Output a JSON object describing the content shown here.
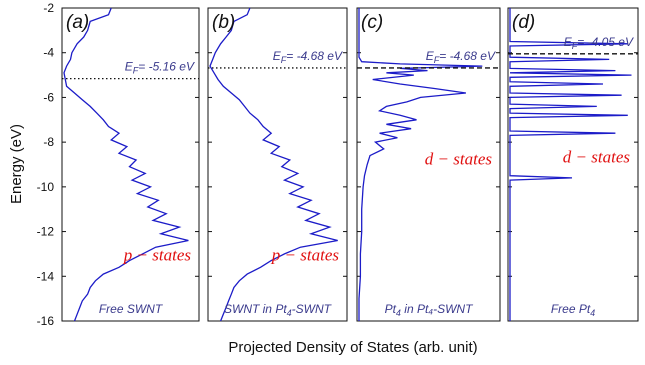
{
  "chart_data": {
    "type": "line",
    "ylabel": "Energy (eV)",
    "xlabel": "Projected Density of States (arb. unit)",
    "ylim": [
      -16,
      -2
    ],
    "yticks": [
      -2,
      -4,
      -6,
      -8,
      -10,
      -12,
      -14,
      -16
    ],
    "line_color": "#1c1cc8",
    "label_color": "#3a3a8c",
    "state_color": "#e01010",
    "panels": [
      {
        "letter": "(a)",
        "fermi_label": "E",
        "fermi_sub": "F",
        "fermi_value": "= -5.16 eV",
        "fermi_energy": -5.16,
        "fermi_style": "dotted",
        "state_label": "p − states",
        "state_energy": -13.3,
        "bottom_label": "Free SWNT",
        "bottom_sub": "",
        "bottom_tail": "",
        "series": {
          "name": "",
          "energy": [
            -2.0,
            -2.3,
            -2.6,
            -3.0,
            -3.3,
            -3.6,
            -4.0,
            -4.3,
            -4.6,
            -4.9,
            -5.2,
            -5.5,
            -5.8,
            -6.1,
            -6.4,
            -6.7,
            -7.0,
            -7.3,
            -7.6,
            -7.9,
            -8.2,
            -8.5,
            -8.8,
            -9.1,
            -9.4,
            -9.7,
            -10.0,
            -10.3,
            -10.6,
            -10.9,
            -11.2,
            -11.5,
            -11.8,
            -12.1,
            -12.4,
            -12.7,
            -13.0,
            -13.3,
            -13.6,
            -13.9,
            -14.2,
            -14.5,
            -14.8,
            -15.1,
            -15.4,
            -15.7,
            -16.0
          ],
          "dos": [
            0.36,
            0.34,
            0.2,
            0.18,
            0.15,
            0.1,
            0.06,
            0.05,
            0.02,
            0.0,
            0.01,
            0.02,
            0.08,
            0.14,
            0.2,
            0.25,
            0.3,
            0.34,
            0.42,
            0.36,
            0.48,
            0.42,
            0.55,
            0.5,
            0.62,
            0.52,
            0.66,
            0.56,
            0.72,
            0.64,
            0.78,
            0.68,
            0.88,
            0.74,
            0.95,
            0.7,
            0.6,
            0.5,
            0.42,
            0.3,
            0.24,
            0.2,
            0.18,
            0.14,
            0.12,
            0.1,
            0.08
          ]
        }
      },
      {
        "letter": "(b)",
        "fermi_label": "E",
        "fermi_sub": "F",
        "fermi_value": "= -4.68 eV",
        "fermi_energy": -4.68,
        "fermi_style": "dotted",
        "state_label": "p − states",
        "state_energy": -13.3,
        "bottom_label": "SWNT in Pt",
        "bottom_sub": "4",
        "bottom_tail": "-SWNT",
        "series": {
          "name": "",
          "energy": [
            -2.0,
            -2.3,
            -2.6,
            -3.0,
            -3.3,
            -3.6,
            -4.0,
            -4.3,
            -4.6,
            -4.9,
            -5.2,
            -5.5,
            -5.8,
            -6.1,
            -6.4,
            -6.7,
            -7.0,
            -7.3,
            -7.6,
            -7.9,
            -8.2,
            -8.5,
            -8.8,
            -9.1,
            -9.4,
            -9.7,
            -10.0,
            -10.3,
            -10.6,
            -10.9,
            -11.2,
            -11.5,
            -11.8,
            -12.1,
            -12.4,
            -12.7,
            -13.0,
            -13.3,
            -13.6,
            -13.9,
            -14.2,
            -14.5,
            -14.8,
            -15.1,
            -15.4,
            -15.7,
            -16.0
          ],
          "dos": [
            0.3,
            0.28,
            0.18,
            0.16,
            0.12,
            0.08,
            0.04,
            0.02,
            0.0,
            0.03,
            0.06,
            0.1,
            0.16,
            0.22,
            0.26,
            0.3,
            0.36,
            0.4,
            0.46,
            0.4,
            0.52,
            0.46,
            0.6,
            0.54,
            0.66,
            0.56,
            0.7,
            0.6,
            0.76,
            0.66,
            0.82,
            0.72,
            0.9,
            0.76,
            0.96,
            0.68,
            0.56,
            0.46,
            0.38,
            0.28,
            0.22,
            0.18,
            0.16,
            0.14,
            0.12,
            0.1,
            0.08
          ]
        }
      },
      {
        "letter": "(c)",
        "fermi_label": "E",
        "fermi_sub": "F",
        "fermi_value": "= -4.68 eV",
        "fermi_energy": -4.68,
        "fermi_style": "dashed",
        "state_label": "d − states",
        "state_energy": -9.0,
        "bottom_label": "Pt",
        "bottom_sub": "4",
        "bottom_tail": " in Pt₄-SWNT",
        "series": {
          "name": "",
          "energy": [
            -2.0,
            -4.2,
            -4.4,
            -4.5,
            -4.6,
            -4.7,
            -4.8,
            -4.9,
            -5.0,
            -5.2,
            -5.4,
            -5.6,
            -5.8,
            -6.0,
            -6.2,
            -6.4,
            -6.6,
            -6.8,
            -7.0,
            -7.2,
            -7.4,
            -7.6,
            -7.8,
            -8.0,
            -8.3,
            -8.6,
            -9.0,
            -9.5,
            -10.0,
            -11.0,
            -12.0,
            -13.0,
            -14.0,
            -15.0,
            -16.0
          ],
          "dos": [
            0.0,
            0.0,
            0.02,
            0.3,
            0.9,
            0.3,
            0.5,
            0.2,
            0.4,
            0.1,
            0.3,
            0.55,
            0.78,
            0.45,
            0.35,
            0.2,
            0.15,
            0.3,
            0.42,
            0.2,
            0.38,
            0.15,
            0.28,
            0.12,
            0.18,
            0.08,
            0.06,
            0.04,
            0.03,
            0.02,
            0.02,
            0.01,
            0.01,
            0.0,
            0.0
          ]
        }
      },
      {
        "letter": "(d)",
        "fermi_label": "E",
        "fermi_sub": "F",
        "fermi_value": "= -4.05 eV",
        "fermi_energy": -4.05,
        "fermi_style": "dashed",
        "state_label": "d − states",
        "state_energy": -8.9,
        "bottom_label": "Free Pt",
        "bottom_sub": "4",
        "bottom_tail": "",
        "series": {
          "name": "",
          "energy": [
            -2.0,
            -3.5,
            -3.6,
            -3.7,
            -4.2,
            -4.3,
            -4.4,
            -4.7,
            -4.8,
            -4.9,
            -5.0,
            -5.1,
            -5.3,
            -5.4,
            -5.5,
            -5.8,
            -5.9,
            -6.0,
            -6.3,
            -6.4,
            -6.5,
            -6.7,
            -6.8,
            -6.9,
            -7.5,
            -7.6,
            -7.7,
            -9.5,
            -9.6,
            -9.7,
            -16.0
          ],
          "dos": [
            0.0,
            0.0,
            0.95,
            0.0,
            0.0,
            0.8,
            0.0,
            0.0,
            0.85,
            0.0,
            0.98,
            0.0,
            0.0,
            0.75,
            0.0,
            0.0,
            0.9,
            0.0,
            0.0,
            0.7,
            0.0,
            0.0,
            0.95,
            0.0,
            0.0,
            0.85,
            0.0,
            0.0,
            0.5,
            0.0,
            0.0
          ]
        }
      }
    ]
  }
}
